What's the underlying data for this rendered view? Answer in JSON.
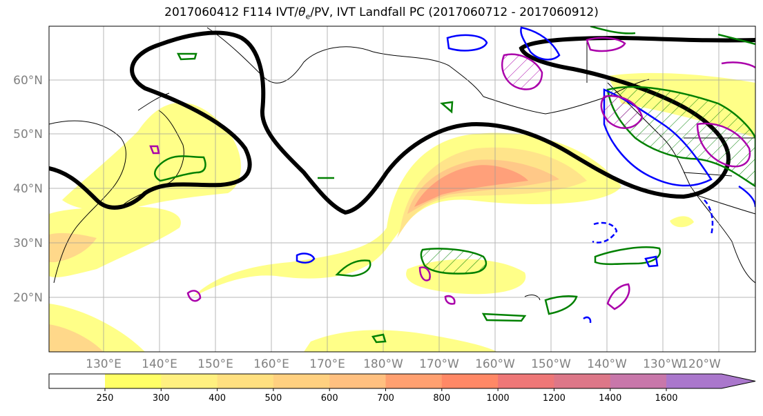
{
  "title_prefix": "2017060412 F114 IVT/",
  "title_theta": "θ",
  "title_sub": "e",
  "title_suffix": "/PV, IVT Landfall PC (2017060712 - 2017060912)",
  "lat_labels": [
    "60°N",
    "50°N",
    "40°N",
    "30°N",
    "20°N"
  ],
  "lon_labels": [
    "130°E",
    "140°E",
    "150°E",
    "160°E",
    "170°E",
    "180°W",
    "170°W",
    "160°W",
    "150°W",
    "140°W",
    "130°W",
    "120°W"
  ],
  "colorbar": {
    "ticks": [
      "250",
      "300",
      "400",
      "500",
      "600",
      "700",
      "800",
      "1000",
      "1200",
      "1400",
      "1600"
    ],
    "colors": [
      "#ffff66",
      "#fff080",
      "#ffe080",
      "#ffd080",
      "#ffc080",
      "#ffa070",
      "#ff8866",
      "#ee7777",
      "#dd7788",
      "#c877aa",
      "#aa77cc"
    ]
  },
  "contour_colors": {
    "ivt_landfall_pc": "#000000",
    "pv_positive": "#008000",
    "pv_negative": "#0000ff",
    "theta_e": "#aa00aa"
  }
}
